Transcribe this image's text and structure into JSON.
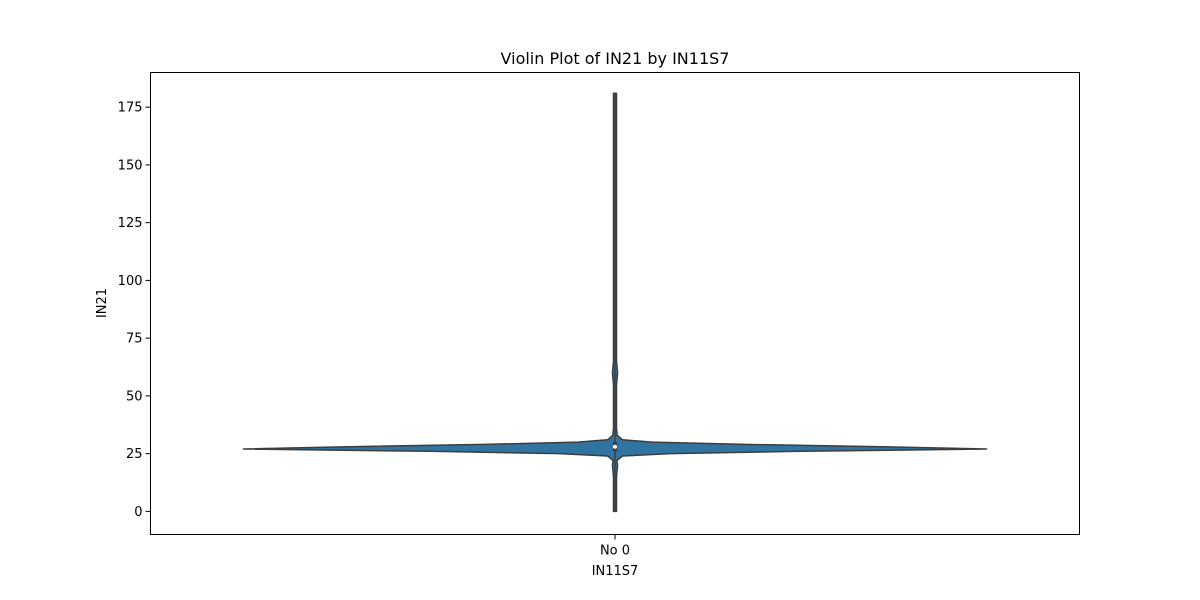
{
  "chart_data": {
    "type": "violin",
    "title": "Violin Plot of IN21 by IN11S7",
    "xlabel": "IN11S7",
    "ylabel": "IN21",
    "categories": [
      "No 0"
    ],
    "ylim": [
      -10,
      190
    ],
    "yticks": [
      0,
      25,
      50,
      75,
      100,
      125,
      150,
      175
    ],
    "ytick_labels": [
      "0",
      "25",
      "50",
      "75",
      "100",
      "125",
      "150",
      "175"
    ],
    "grid": false,
    "violin_color": "#3274a1",
    "edge_color": "#3d3d3d",
    "series": [
      {
        "category": "No 0",
        "min": 0,
        "q1": 26,
        "median": 28,
        "q3": 30,
        "max": 181,
        "density_profile": [
          {
            "y": 0,
            "rel_width": 0.002
          },
          {
            "y": 5,
            "rel_width": 0.004
          },
          {
            "y": 10,
            "rel_width": 0.003
          },
          {
            "y": 15,
            "rel_width": 0.004
          },
          {
            "y": 20,
            "rel_width": 0.007
          },
          {
            "y": 22,
            "rel_width": 0.005
          },
          {
            "y": 24,
            "rel_width": 0.02
          },
          {
            "y": 25,
            "rel_width": 0.15
          },
          {
            "y": 26,
            "rel_width": 0.5
          },
          {
            "y": 27,
            "rel_width": 1.0
          },
          {
            "y": 28,
            "rel_width": 0.72
          },
          {
            "y": 29,
            "rel_width": 0.35
          },
          {
            "y": 30,
            "rel_width": 0.1
          },
          {
            "y": 31,
            "rel_width": 0.02
          },
          {
            "y": 33,
            "rel_width": 0.006
          },
          {
            "y": 36,
            "rel_width": 0.003
          },
          {
            "y": 40,
            "rel_width": 0.004
          },
          {
            "y": 45,
            "rel_width": 0.002
          },
          {
            "y": 55,
            "rel_width": 0.002
          },
          {
            "y": 60,
            "rel_width": 0.007
          },
          {
            "y": 65,
            "rel_width": 0.002
          },
          {
            "y": 80,
            "rel_width": 0.002
          },
          {
            "y": 90,
            "rel_width": 0.003
          },
          {
            "y": 95,
            "rel_width": 0.002
          },
          {
            "y": 100,
            "rel_width": 0.003
          },
          {
            "y": 110,
            "rel_width": 0.002
          },
          {
            "y": 181,
            "rel_width": 0.002
          }
        ]
      }
    ]
  }
}
